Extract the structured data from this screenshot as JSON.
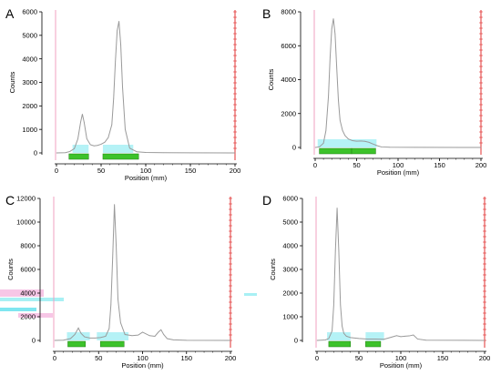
{
  "colors": {
    "trace": "#9a9a9a",
    "axis": "#000000",
    "red_line": "#e03030",
    "pink_line": "#f0a0c0",
    "green_bar": "#3cc22a",
    "green_bar_edge": "#1f7f12",
    "cyan": "#a8f0f4",
    "cyan_strong": "#7fe6f0",
    "pink_smear": "#f7c6e6"
  },
  "chart_data": [
    {
      "panel": "A",
      "type": "line",
      "xlabel": "Position (mm)",
      "ylabel": "Counts",
      "xlim": [
        0,
        200
      ],
      "ylim": [
        0,
        6000
      ],
      "xticks": [
        "0",
        "50",
        "100",
        "150",
        "200"
      ],
      "yticks": [
        "0",
        "1000",
        "2000",
        "3000",
        "4000",
        "5000",
        "6000"
      ],
      "x": [
        0,
        10,
        15,
        20,
        24,
        27,
        29,
        31,
        34,
        38,
        42,
        46,
        50,
        54,
        58,
        62,
        64,
        66,
        68,
        70,
        72,
        74,
        77,
        82,
        90,
        100,
        120,
        150,
        200
      ],
      "y": [
        0,
        10,
        60,
        180,
        600,
        1300,
        1650,
        1300,
        600,
        350,
        300,
        320,
        370,
        450,
        650,
        1200,
        2300,
        3900,
        5200,
        5600,
        4600,
        2800,
        1000,
        200,
        50,
        20,
        10,
        5,
        0
      ],
      "regions": [
        [
          18,
          36
        ],
        [
          52,
          86
        ]
      ],
      "bars": [
        [
          14,
          36
        ],
        [
          52,
          92
        ]
      ]
    },
    {
      "panel": "B",
      "type": "line",
      "xlabel": "Position (mm)",
      "ylabel": "Counts",
      "xlim": [
        0,
        200
      ],
      "ylim": [
        0,
        8000
      ],
      "xticks": [
        "0",
        "50",
        "100",
        "150",
        "200"
      ],
      "yticks": [
        "0",
        "2000",
        "4000",
        "6000",
        "8000"
      ],
      "x": [
        0,
        5,
        10,
        13,
        16,
        18,
        20,
        22,
        24,
        26,
        28,
        30,
        33,
        36,
        40,
        45,
        50,
        55,
        60,
        65,
        70,
        75,
        80,
        90,
        120,
        200
      ],
      "y": [
        0,
        30,
        250,
        1000,
        3000,
        5300,
        7000,
        7600,
        6700,
        4700,
        2800,
        1600,
        1000,
        700,
        500,
        400,
        370,
        380,
        360,
        300,
        200,
        100,
        30,
        10,
        5,
        0
      ],
      "regions": [
        [
          3,
          74
        ]
      ],
      "bars": [
        [
          5,
          44
        ],
        [
          44,
          73
        ]
      ]
    },
    {
      "panel": "C",
      "type": "line",
      "xlabel": "Position (mm)",
      "ylabel": "Counts",
      "xlim": [
        0,
        200
      ],
      "ylim": [
        0,
        12000
      ],
      "xticks": [
        "0",
        "50",
        "100",
        "150",
        "200"
      ],
      "yticks": [
        "0",
        "2000",
        "4000",
        "6000",
        "8000",
        "10000",
        "12000"
      ],
      "x": [
        0,
        10,
        18,
        23,
        27,
        30,
        34,
        40,
        46,
        52,
        58,
        62,
        64,
        66,
        68,
        70,
        72,
        75,
        80,
        88,
        95,
        100,
        108,
        114,
        118,
        121,
        124,
        128,
        135,
        150,
        200
      ],
      "y": [
        0,
        20,
        150,
        500,
        1050,
        600,
        300,
        200,
        200,
        240,
        350,
        1000,
        3000,
        7000,
        11500,
        8000,
        3500,
        1500,
        500,
        400,
        450,
        700,
        400,
        350,
        700,
        900,
        500,
        150,
        50,
        10,
        0
      ],
      "regions": [
        [
          14,
          40
        ],
        [
          48,
          84
        ]
      ],
      "bars": [
        [
          15,
          35
        ],
        [
          52,
          79
        ]
      ]
    },
    {
      "panel": "D",
      "type": "line",
      "xlabel": "Position (mm)",
      "ylabel": "Counts",
      "xlim": [
        0,
        200
      ],
      "ylim": [
        0,
        6000
      ],
      "xticks": [
        "0",
        "50",
        "100",
        "150",
        "200"
      ],
      "yticks": [
        "0",
        "1000",
        "2000",
        "3000",
        "4000",
        "5000",
        "6000"
      ],
      "x": [
        0,
        10,
        14,
        18,
        20,
        22,
        24,
        26,
        28,
        30,
        32,
        35,
        40,
        50,
        60,
        70,
        80,
        90,
        95,
        100,
        105,
        110,
        115,
        120,
        130,
        200
      ],
      "y": [
        0,
        20,
        80,
        400,
        1500,
        3800,
        5600,
        3800,
        1500,
        600,
        300,
        180,
        120,
        80,
        60,
        60,
        50,
        150,
        200,
        160,
        180,
        190,
        230,
        60,
        10,
        0
      ],
      "regions": [
        [
          12,
          40
        ],
        [
          58,
          80
        ]
      ],
      "bars": [
        [
          14,
          40
        ],
        [
          58,
          76
        ]
      ]
    }
  ]
}
